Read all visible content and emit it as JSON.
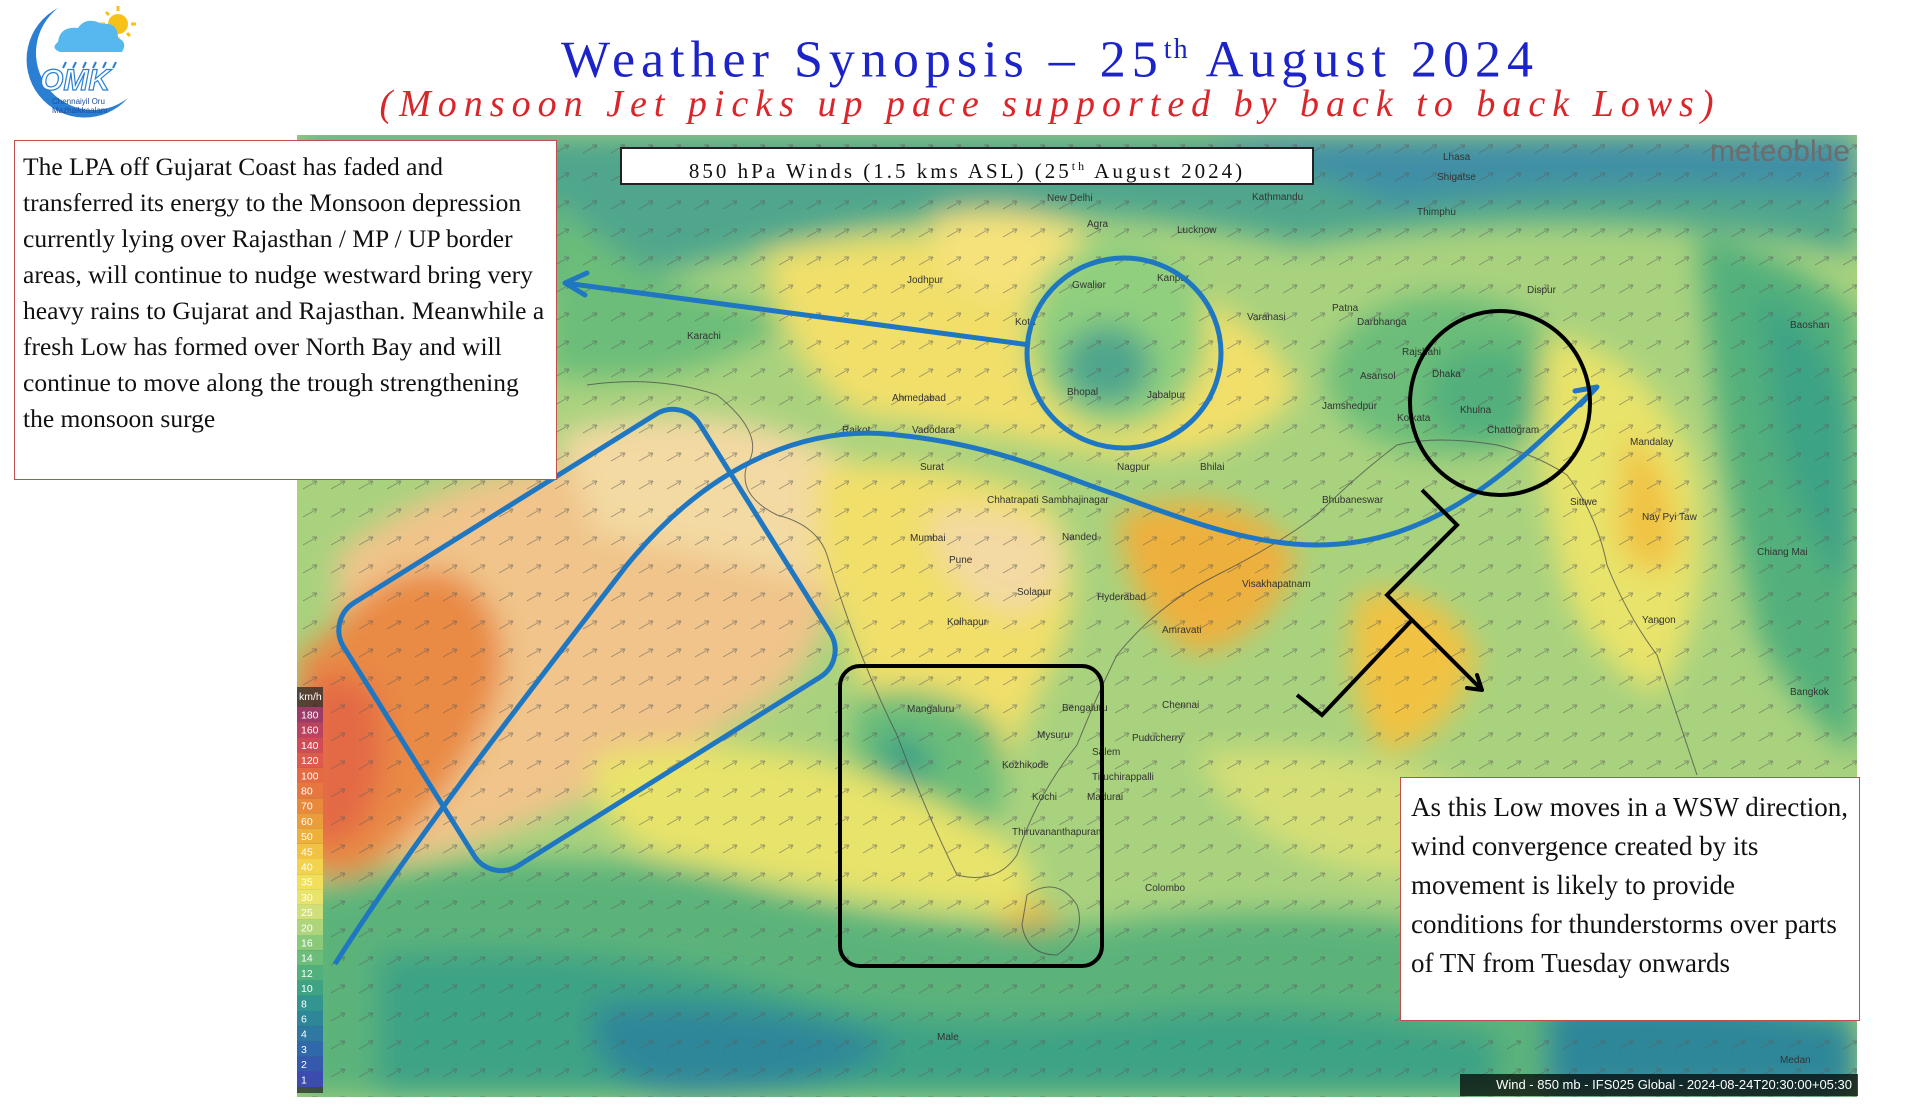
{
  "header": {
    "title_main": "Weather Synopsis – 25",
    "title_sup": "th",
    "title_tail": " August 2024",
    "subtitle": "(Monsoon Jet picks up pace supported by back to back Lows)"
  },
  "logo": {
    "text": "OMK",
    "line1": "Chennaiyil Oru",
    "line2": "Mazhaikkaalam",
    "icon": "rain-cloud-sun-icon"
  },
  "map": {
    "label_main": "850 hPa Winds (1.5 kms ASL) (25",
    "label_sup": "th",
    "label_tail": " August 2024)",
    "brand": "meteoblue",
    "footer": "Wind - 850 mb - IFS025 Global - 2024-08-24T20:30:00+05:30",
    "legend_unit": "km/h",
    "legend": [
      "180",
      "160",
      "140",
      "120",
      "100",
      "80",
      "70",
      "60",
      "50",
      "45",
      "40",
      "35",
      "30",
      "25",
      "20",
      "16",
      "14",
      "12",
      "10",
      "8",
      "6",
      "4",
      "3",
      "2",
      "1"
    ],
    "legend_colors": [
      "#9b3b66",
      "#b8445f",
      "#cf4c57",
      "#de5a4c",
      "#e46a44",
      "#e5773f",
      "#e8893c",
      "#eb9c3b",
      "#eeb03d",
      "#f1c243",
      "#f3d34d",
      "#f2df5a",
      "#e8e36a",
      "#cfe07a",
      "#aed57c",
      "#8bc97a",
      "#6cbd79",
      "#52b07c",
      "#3ea385",
      "#33958f",
      "#2e8799",
      "#2e78a2",
      "#3069a9",
      "#355aad",
      "#3b4cae"
    ],
    "cities": [
      "Lhasa",
      "Shigatse",
      "New Delhi",
      "Agra",
      "Kathmandu",
      "Thimphu",
      "Lucknow",
      "Gwalior",
      "Kanpur",
      "Jodhpur",
      "Varanasi",
      "Patna",
      "Dispur",
      "Karachi",
      "Kota",
      "Baoshan",
      "Darbhanga",
      "Rajshahi",
      "Ahmedabad",
      "Bhopal",
      "Jabalpur",
      "Asansol",
      "Dhaka",
      "Jamshedpur",
      "Khulna",
      "Rajkot",
      "Vadodara",
      "Kolkata",
      "Chattogram",
      "Mandalay",
      "Surat",
      "Nagpur",
      "Bhilai",
      "Chhatrapati Sambhajinagar",
      "Bhubaneswar",
      "Mumbai",
      "Nanded",
      "Sittwe",
      "Nay Pyi Taw",
      "Pune",
      "Solapur",
      "Hyderabad",
      "Visakhapatnam",
      "Chiang Mai",
      "Kolhapur",
      "Amravati",
      "Yangon",
      "Mangaluru",
      "Bengaluru",
      "Chennai",
      "Mysuru",
      "Puducherry",
      "Salem",
      "Kozhikode",
      "Tiruchirappalli",
      "Kochi",
      "Madurai",
      "Thiruvananthapuram",
      "Colombo",
      "Bangkok",
      "Male",
      "Medan"
    ]
  },
  "notes": {
    "left": "The LPA off Gujarat Coast has faded and transferred its energy to the Monsoon depression currently lying over Rajasthan / MP / UP border areas, will continue to nudge westward bring very heavy rains to Gujarat and Rajasthan. Meanwhile a fresh Low has formed over North Bay and will continue to move along the trough strengthening the monsoon surge",
    "right": "As this Low moves in a WSW direction, wind convergence created by its movement is likely to provide conditions for thunderstorms over parts of TN from Tuesday onwards"
  },
  "colors": {
    "title": "#1c23c9",
    "subtitle": "#d9262b",
    "annotation_blue": "#1f77c2",
    "annotation_black": "#000000",
    "box_border": "#c0504d"
  }
}
